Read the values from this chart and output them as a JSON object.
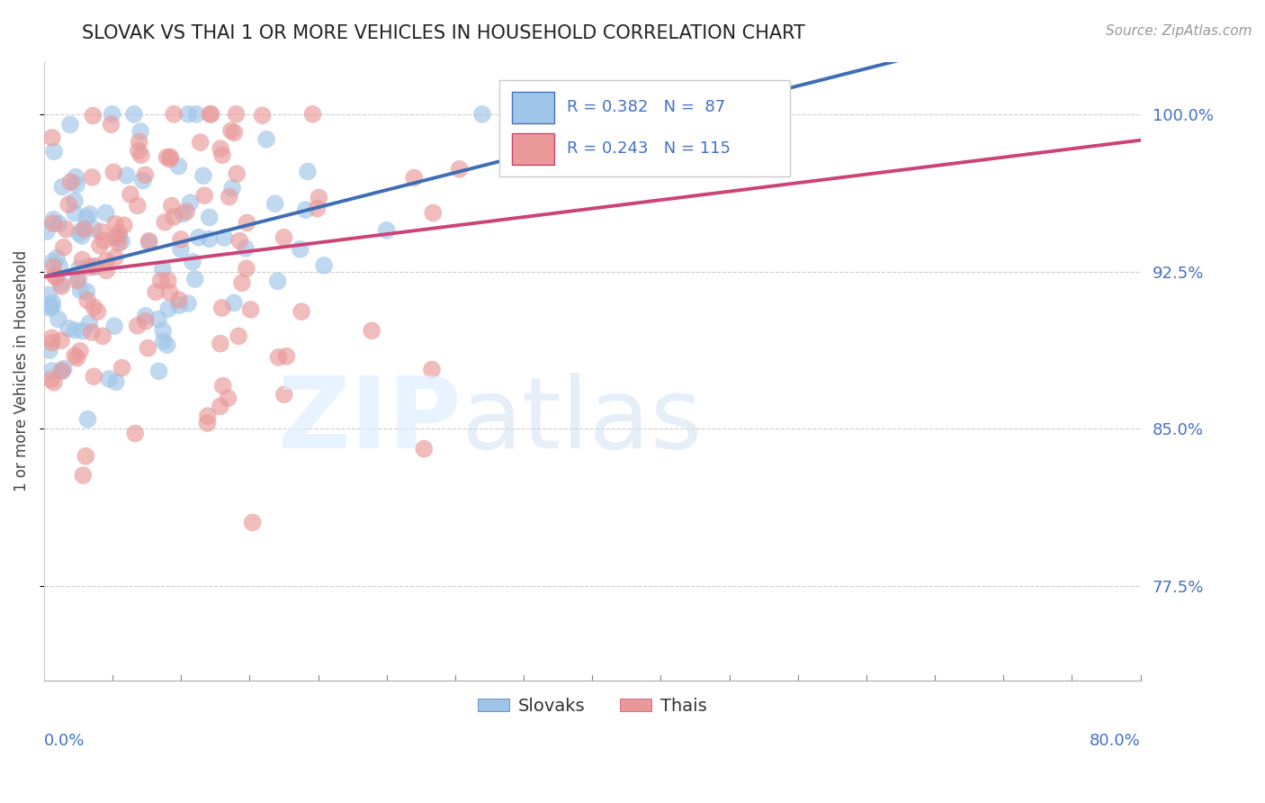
{
  "title": "SLOVAK VS THAI 1 OR MORE VEHICLES IN HOUSEHOLD CORRELATION CHART",
  "source": "Source: ZipAtlas.com",
  "ylabel": "1 or more Vehicles in Household",
  "xmin": 0.0,
  "xmax": 80.0,
  "ymin": 73.0,
  "ymax": 102.5,
  "ytick_positions": [
    77.5,
    85.0,
    92.5,
    100.0
  ],
  "ytick_labels": [
    "77.5%",
    "85.0%",
    "92.5%",
    "100.0%"
  ],
  "blue_color": "#9fc5e8",
  "pink_color": "#ea9999",
  "blue_line_color": "#3d6eb5",
  "pink_line_color": "#cc4477",
  "blue_r": 0.382,
  "blue_n": 87,
  "blue_slope": 0.115,
  "blue_intercept": 93.2,
  "pink_r": 0.243,
  "pink_n": 115,
  "pink_slope": 0.058,
  "pink_intercept": 92.3,
  "seed_blue": 42,
  "seed_pink": 99
}
